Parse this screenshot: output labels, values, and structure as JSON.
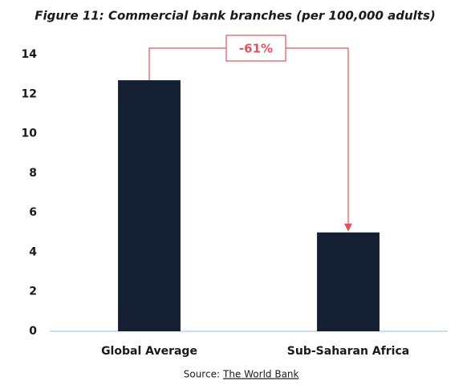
{
  "chart_data": {
    "type": "bar",
    "title": "Figure 11: Commercial bank branches (per 100,000 adults)",
    "categories": [
      "Global Average",
      "Sub-Saharan Africa"
    ],
    "values": [
      12.7,
      5.0
    ],
    "color": "#141f31",
    "ylim": [
      0,
      14
    ],
    "yticks": [
      0,
      2,
      4,
      6,
      8,
      10,
      12,
      14
    ],
    "grid": false,
    "annotation": "-61%",
    "annotation_color": "#e8505b",
    "source_label": "Source:",
    "source_link": "The World Bank"
  }
}
